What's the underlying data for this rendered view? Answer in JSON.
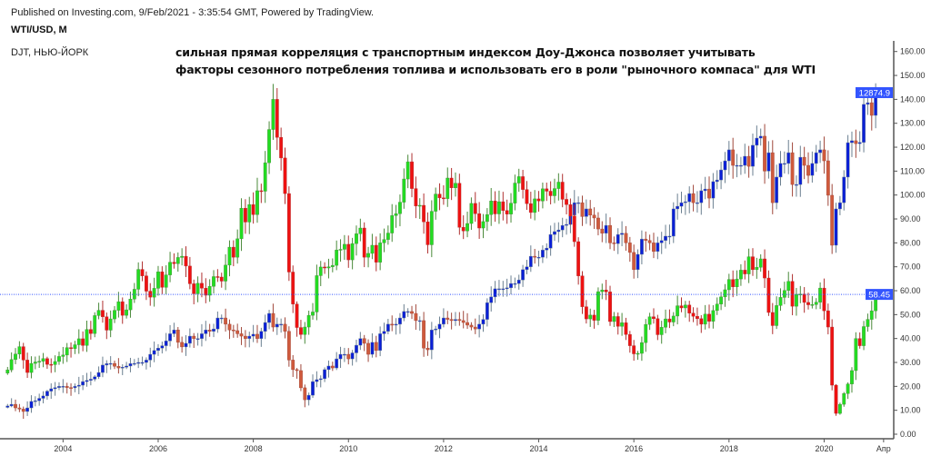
{
  "header": {
    "published": "Published on Investing.com, 9/Feb/2021 - 3:35:54 GMT, Powered by TradingView.",
    "symbol": "WTI/USD, M",
    "overlay_symbol": "DJT, НЬЮ-ЙОРК",
    "annotation_line1": "сильная прямая корреляция с транспортным индексом Доу-Джонса позволяет учитывать",
    "annotation_line2": "факторы сезонного потребления топлива и использовать его в роли \"рыночного компаса\" для WTI"
  },
  "chart_data": {
    "type": "candlestick",
    "interval": "monthly",
    "start": "2002-11",
    "end": "2021-02",
    "ylim": [
      0,
      160
    ],
    "yticks": [
      "0.00",
      "10.00",
      "20.00",
      "30.00",
      "40.00",
      "50.00",
      "60.00",
      "70.00",
      "80.00",
      "90.00",
      "100.00",
      "110.00",
      "120.00",
      "130.00",
      "140.00",
      "150.00",
      "160.00"
    ],
    "xticks": [
      "2004",
      "2006",
      "2008",
      "2010",
      "2012",
      "2014",
      "2016",
      "2018",
      "2020",
      "Апр"
    ],
    "grid": false,
    "colors": {
      "wti_up": "#22dd22",
      "wti_down": "#ee1111",
      "djt_up": "#0a1fd6",
      "djt_down": "#cf5a3c",
      "last_price_line": "#3355ff",
      "axis": "#555555"
    },
    "series": [
      {
        "name": "WTI/USD",
        "last_label": "58.45",
        "closes": [
          26.9,
          31.2,
          33.5,
          36.6,
          31.0,
          25.8,
          29.6,
          30.2,
          30.5,
          31.6,
          29.2,
          29.1,
          30.4,
          32.5,
          33.1,
          36.2,
          35.8,
          37.4,
          39.9,
          37.1,
          43.8,
          42.1,
          49.6,
          51.8,
          49.1,
          43.5,
          48.2,
          51.8,
          55.4,
          49.7,
          52.0,
          56.5,
          60.6,
          68.9,
          66.2,
          59.8,
          57.3,
          61.0,
          67.9,
          61.4,
          66.6,
          71.9,
          71.3,
          73.9,
          74.4,
          70.3,
          62.9,
          58.7,
          63.1,
          61.05,
          58.1,
          61.8,
          65.9,
          65.7,
          64.0,
          70.7,
          78.2,
          74.0,
          81.7,
          94.5,
          88.7,
          96.0,
          91.8,
          101.8,
          101.6,
          113.5,
          127.4,
          140.0,
          124.1,
          115.5,
          100.6,
          67.8,
          54.4,
          44.6,
          41.7,
          44.8,
          49.7,
          51.1,
          66.3,
          69.9,
          69.5,
          70.0,
          70.6,
          77.0,
          77.3,
          79.4,
          72.9,
          79.7,
          83.8,
          86.2,
          74.0,
          75.6,
          79.0,
          71.9,
          80.0,
          81.4,
          84.1,
          91.4,
          92.2,
          97.0,
          106.7,
          113.9,
          102.7,
          95.4,
          95.7,
          88.8,
          79.2,
          93.2,
          100.4,
          98.8,
          98.5,
          107.1,
          103.0,
          104.9,
          86.5,
          85.0,
          88.1,
          96.5,
          92.2,
          86.2,
          88.9,
          91.8,
          97.5,
          92.1,
          97.2,
          93.5,
          92.0,
          96.6,
          105.0,
          107.7,
          102.3,
          96.4,
          92.7,
          98.4,
          97.5,
          102.6,
          101.6,
          99.7,
          102.7,
          105.4,
          98.2,
          96.0,
          91.2,
          80.5,
          66.2,
          53.3,
          48.2,
          49.8,
          47.6,
          59.6,
          60.3,
          59.5,
          47.1,
          49.2,
          45.1,
          46.6,
          41.7,
          37.0,
          33.6,
          33.8,
          38.3,
          45.9,
          49.1,
          48.3,
          41.6,
          44.7,
          48.2,
          46.9,
          49.4,
          53.7,
          52.8,
          54.0,
          50.6,
          49.3,
          48.3,
          46.0,
          50.2,
          47.2,
          51.7,
          54.4,
          57.4,
          60.4,
          64.7,
          61.6,
          64.9,
          68.6,
          67.0,
          74.2,
          68.8,
          69.8,
          73.3,
          65.3,
          50.9,
          45.4,
          53.8,
          57.2,
          60.1,
          63.9,
          53.5,
          58.5,
          58.6,
          55.1,
          54.1,
          54.2,
          55.2,
          61.1,
          51.6,
          44.8,
          20.5,
          8.7,
          12.5,
          17.0,
          21.0,
          26.6,
          40.0,
          37.0,
          45.0,
          48.0,
          51.6,
          58.45
        ]
      },
      {
        "name": "DJT",
        "last_label": "12874.9",
        "closes": [
          2394,
          2450,
          2330,
          2290,
          2210,
          2330,
          2546,
          2570,
          2650,
          2730,
          2890,
          2970,
          3010,
          3050,
          3050,
          3010,
          3002,
          3050,
          3090,
          3210,
          3250,
          3290,
          3370,
          3514,
          3762,
          3810,
          3818,
          3722,
          3666,
          3690,
          3730,
          3810,
          3818,
          3850,
          3850,
          3930,
          4122,
          4250,
          4330,
          4410,
          4570,
          4810,
          4938,
          4522,
          4370,
          4490,
          4730,
          4650,
          4650,
          4810,
          4938,
          4890,
          4970,
          5338,
          5338,
          5130,
          4938,
          4914,
          4810,
          4730,
          4650,
          4730,
          4794,
          4650,
          4890,
          5186,
          5490,
          5034,
          5130,
          5130,
          4890,
          3930,
          3610,
          3578,
          3002,
          2602,
          2754,
          3210,
          3274,
          3306,
          3610,
          3730,
          3666,
          3970,
          4122,
          4122,
          3970,
          4170,
          4426,
          4650,
          4490,
          4122,
          4522,
          4250,
          4810,
          4890,
          5130,
          5098,
          5130,
          5338,
          5554,
          5554,
          5490,
          5250,
          5250,
          4330,
          4274,
          4938,
          4970,
          5130,
          5338,
          5290,
          5250,
          5290,
          5250,
          5186,
          5098,
          5034,
          4970,
          5130,
          5290,
          5850,
          6042,
          6314,
          6314,
          6314,
          6346,
          6490,
          6490,
          6610,
          6954,
          7050,
          7402,
          7370,
          7370,
          7610,
          7674,
          8130,
          8226,
          8282,
          8434,
          8466,
          8778,
          9194,
          9194,
          8730,
          8986,
          8778,
          8682,
          8314,
          8170,
          8434,
          7850,
          7826,
          8130,
          8170,
          7850,
          7530,
          6954,
          7466,
          7978,
          7930,
          7850,
          7562,
          7850,
          7930,
          8074,
          8074,
          8986,
          9074,
          9194,
          9226,
          9498,
          9194,
          9194,
          9594,
          9650,
          9346,
          9898,
          9954,
          10290,
          10594,
          10962,
          10442,
          10442,
          10442,
          10746,
          10410,
          11114,
          11354,
          11418,
          10250,
          10866,
          9194,
          10050,
          10506,
          10506,
          10866,
          9802,
          9802,
          10714,
          10442,
          10106,
          10506,
          10866,
          10962,
          10594,
          9442,
          7770,
          8986,
          9194,
          10050,
          11202,
          11266,
          11170,
          11210,
          12482,
          12538,
          12114,
          12874.9
        ]
      }
    ]
  }
}
